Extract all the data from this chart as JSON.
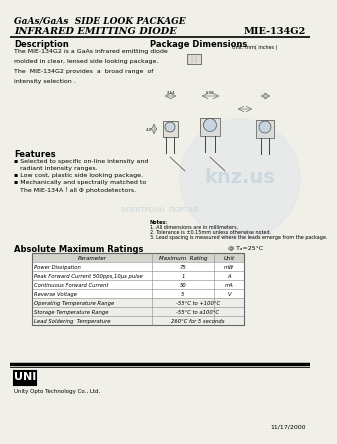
{
  "title_line1": "GaAs/GaAs  SIDE LOOK PACKAGE",
  "title_line2": "INFRARED EMITTING DIODE",
  "part_number": "MIE-134G2",
  "description_title": "Description",
  "description_text": [
    "The MIE-134G2 is a GaAs infrared emitting diode",
    "",
    "molded in clear, lensed side looking package.",
    "",
    "The  MIE-134G2 provides  a  broad range  of",
    "",
    "intensity selection ."
  ],
  "features_title": "Features",
  "features_text": [
    "▪ Selected to specific on-line intensity and",
    "   radiant intensity ranges.",
    "▪ Low cost, plastic side looking package.",
    "▪ Mechanically and spectrally matched to",
    "   The MIE-134A！all Φ photodetectors."
  ],
  "pkg_dim_title": "Package Dimensions",
  "pkg_dim_unit": "Unit: mm( inches )",
  "pkg_note1": "Notes:",
  "pkg_note2": "1. All dimensions are in millimeters.",
  "pkg_note3": "2. Tolerance is ±0.15mm unless otherwise noted.",
  "pkg_note4": "3. Lead spacing is measured where the leads emerge from the package.",
  "ratings_title": "Absolute Maximum Ratings",
  "ratings_temp": "@ Tₐ=25°C",
  "table_headers": [
    "Parameter",
    "Maximum  Rating",
    "Unit"
  ],
  "table_rows": [
    [
      "Power Dissipation",
      "75",
      "mW"
    ],
    [
      "Peak Forward Current 500pps,10μs pulse",
      "1",
      "A"
    ],
    [
      "Continuous Forward Current",
      "50",
      "mA"
    ],
    [
      "Reverse Voltage",
      "5",
      "V"
    ],
    [
      "Operating Temperature Range",
      "-55°C to +100°C",
      ""
    ],
    [
      "Storage Temperature Range",
      "-55°C to a100°C",
      ""
    ],
    [
      "Lead Soldering  Temperature",
      "260°C for 5 seconds",
      ""
    ]
  ],
  "company_name": "Unity Opto Technology Co., Ltd.",
  "date": "11/17/2000",
  "bg_color": "#f0efe8"
}
